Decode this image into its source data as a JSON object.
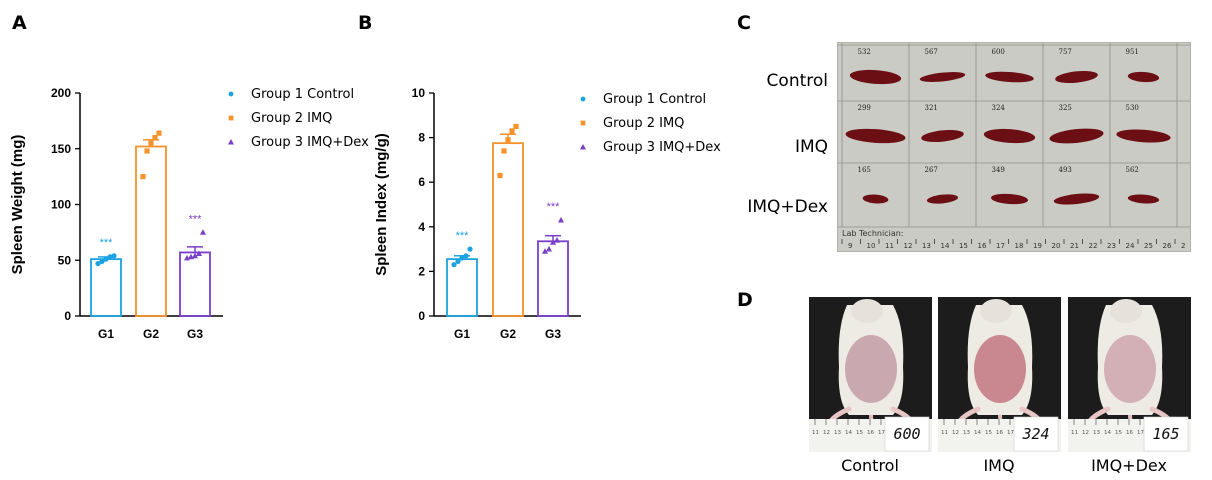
{
  "panels": {
    "a": "A",
    "b": "B",
    "c": "C",
    "d": "D"
  },
  "colors": {
    "g1": "#1AA3E0",
    "g2": "#F5922A",
    "g3": "#7A3FC8",
    "spleen": "#6b0f14",
    "board": "#c9cbc4",
    "ink": "#000000"
  },
  "chart_data": [
    {
      "type": "bar",
      "title": "",
      "xlabel": "",
      "ylabel": "Spleen Weight (mg)",
      "ylim": [
        0,
        200
      ],
      "yticks": [
        0,
        50,
        100,
        150,
        200
      ],
      "categories": [
        "G1",
        "G2",
        "G3"
      ],
      "values": [
        51,
        152,
        57
      ],
      "sem": [
        2,
        6,
        5
      ],
      "significance": [
        "***",
        "",
        "***"
      ],
      "points": [
        [
          47,
          49,
          51,
          53,
          54
        ],
        [
          125,
          148,
          155,
          160,
          164
        ],
        [
          52,
          53,
          54,
          56,
          75
        ]
      ],
      "markers": [
        "circle",
        "square",
        "triangle"
      ],
      "legend": [
        "Group 1 Control",
        "Group 2 IMQ",
        "Group 3 IMQ+Dex"
      ]
    },
    {
      "type": "bar",
      "title": "",
      "xlabel": "",
      "ylabel": "Spleen Index (mg/g)",
      "ylim": [
        0,
        10
      ],
      "yticks": [
        0,
        2,
        4,
        6,
        8,
        10
      ],
      "categories": [
        "G1",
        "G2",
        "G3"
      ],
      "values": [
        2.55,
        7.75,
        3.35
      ],
      "sem": [
        0.15,
        0.4,
        0.25
      ],
      "significance": [
        "***",
        "",
        "***"
      ],
      "points": [
        [
          2.3,
          2.45,
          2.6,
          2.7,
          3.0
        ],
        [
          6.3,
          7.4,
          7.9,
          8.3,
          8.5
        ],
        [
          2.9,
          3.0,
          3.3,
          3.4,
          4.3
        ]
      ],
      "markers": [
        "circle",
        "square",
        "triangle"
      ],
      "legend": [
        "Group 1 Control",
        "Group 2 IMQ",
        "Group 3 IMQ+Dex"
      ]
    }
  ],
  "spleen_photo": {
    "row_labels": [
      "Control",
      "IMQ",
      "IMQ+Dex"
    ],
    "ids": [
      [
        "532",
        "567",
        "600",
        "757",
        "951"
      ],
      [
        "299",
        "321",
        "324",
        "325",
        "530"
      ],
      [
        "165",
        "267",
        "349",
        "493",
        "562"
      ]
    ],
    "ruler_numbers": [
      "9",
      "10",
      "11",
      "12",
      "13",
      "14",
      "15",
      "16",
      "17",
      "18",
      "19",
      "20",
      "21",
      "22",
      "23",
      "24",
      "25",
      "26",
      "2"
    ],
    "footer_text": "Lab Technician:"
  },
  "mouse_photos": {
    "captions": [
      "Control",
      "IMQ",
      "IMQ+Dex"
    ],
    "tags": [
      "600",
      "324",
      "165"
    ],
    "ruler_numbers": [
      "11",
      "12",
      "13",
      "14",
      "15",
      "16",
      "17"
    ]
  }
}
